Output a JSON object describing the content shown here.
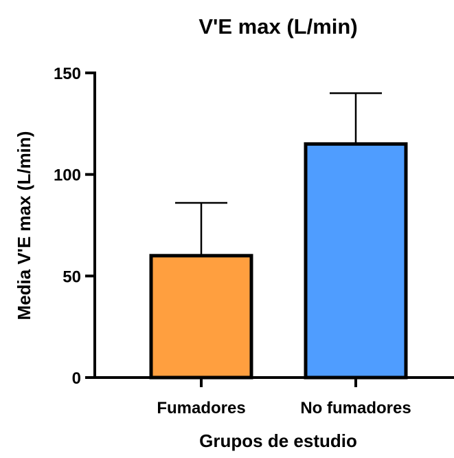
{
  "chart_data": {
    "type": "bar",
    "title": "V'E max (L/min)",
    "xlabel": "Grupos de estudio",
    "ylabel": "Media V'E max (L/min)",
    "categories": [
      "Fumadores",
      "No fumadores"
    ],
    "values": [
      60,
      115
    ],
    "error_upper": [
      86,
      140
    ],
    "ylim": [
      0,
      150
    ],
    "yticks": [
      0,
      50,
      100,
      150
    ],
    "colors": [
      "#FF9F3F",
      "#4F9DFF"
    ],
    "grid": false,
    "legend": "none"
  }
}
